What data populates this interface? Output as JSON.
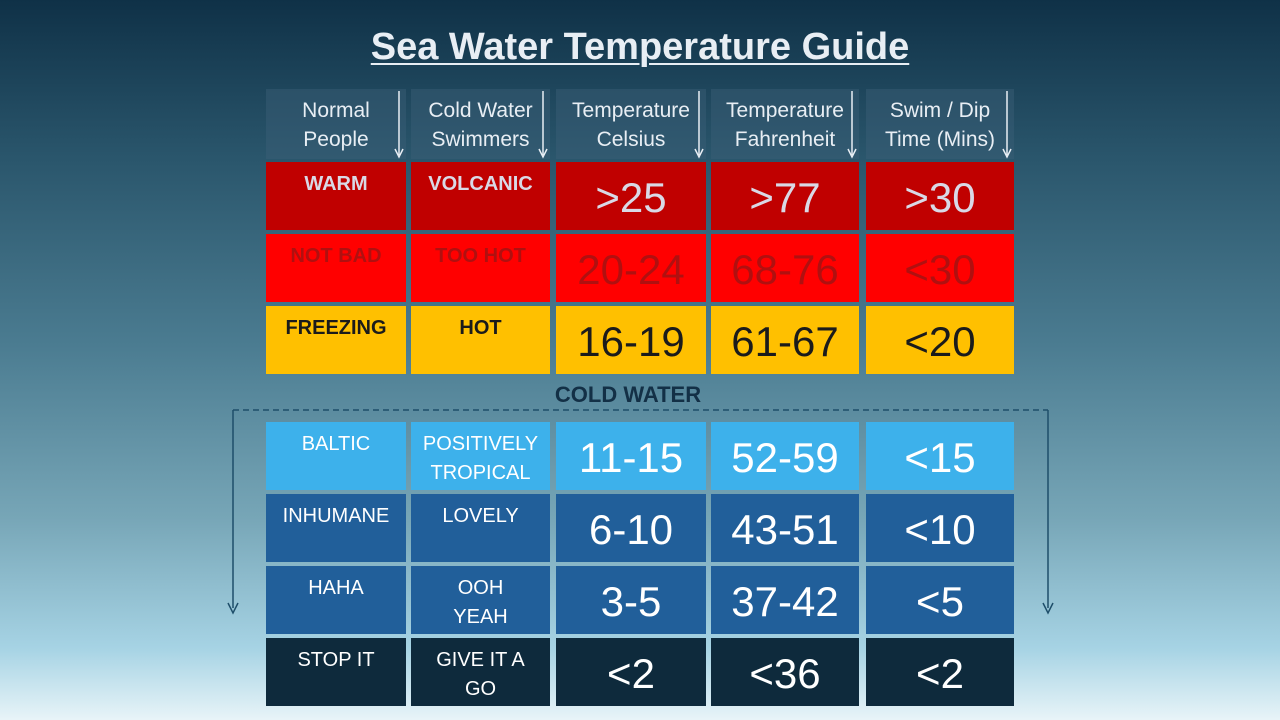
{
  "title": "Sea Water Temperature Guide",
  "headers": [
    "Normal\nPeople",
    "Cold Water\nSwimmers",
    "Temperature\nCelsius",
    "Temperature\nFahrenheit",
    "Swim / Dip\nTime (Mins)"
  ],
  "warm_rows": [
    {
      "normal": "WARM",
      "cold": "VOLCANIC",
      "c": ">25",
      "f": ">77",
      "time": ">30",
      "bg": "#c00000",
      "fg": "#d9d9e6"
    },
    {
      "normal": "NOT BAD",
      "cold": "TOO HOT",
      "c": "20-24",
      "f": "68-76",
      "time": "<30",
      "bg": "#ff0000",
      "fg": "#b01010"
    },
    {
      "normal": "FREEZING",
      "cold": "HOT",
      "c": "16-19",
      "f": "61-67",
      "time": "<20",
      "bg": "#ffc000",
      "fg": "#1b1b1b"
    }
  ],
  "section_label": "COLD WATER",
  "cold_rows": [
    {
      "normal": "BALTIC",
      "cold": "POSITIVELY\nTROPICAL",
      "c": "11-15",
      "f": "52-59",
      "time": "<15",
      "bg": "#3db1eb",
      "fg": "#ffffff"
    },
    {
      "normal": "INHUMANE",
      "cold": "LOVELY",
      "c": "6-10",
      "f": "43-51",
      "time": "<10",
      "bg": "#215f9a",
      "fg": "#ffffff"
    },
    {
      "normal": "HAHA",
      "cold": "OOH\nYEAH",
      "c": "3-5",
      "f": "37-42",
      "time": "<5",
      "bg": "#215f9a",
      "fg": "#ffffff"
    },
    {
      "normal": "STOP  IT",
      "cold": "GIVE IT A\nGO",
      "c": "<2",
      "f": "<36",
      "time": "<2",
      "bg": "#0e2a3c",
      "fg": "#ffffff"
    }
  ]
}
